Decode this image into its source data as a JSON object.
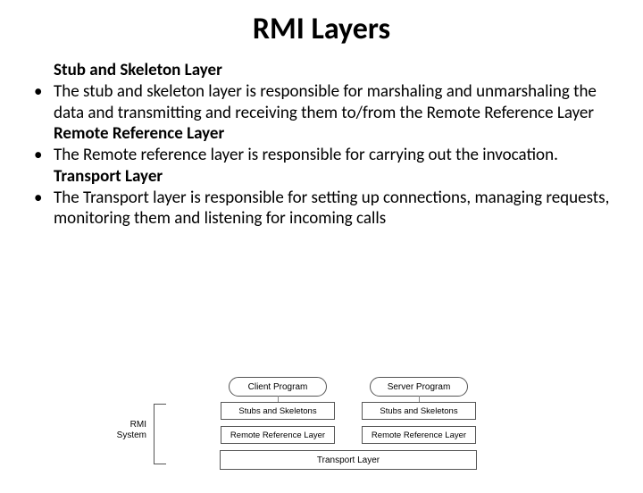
{
  "title": "RMI Layers",
  "sections": [
    {
      "heading": "Stub and Skeleton Layer",
      "bullet": "The stub and skeleton layer is responsible for marshaling and unmarshaling the data and transmitting and receiving them to/from the Remote Reference Layer"
    },
    {
      "heading": "Remote Reference Layer",
      "bullet": "The Remote reference layer is responsible for carrying out the invocation."
    },
    {
      "heading": "Transport Layer",
      "bullet": "The Transport layer is responsible for setting up connections, managing requests, monitoring them and listening for incoming calls"
    }
  ],
  "diagram": {
    "rmi_label_1": "RMI",
    "rmi_label_2": "System",
    "client_oval": "Client Program",
    "server_oval": "Server Program",
    "stub_box": "Stubs and Skeletons",
    "rrl_box": "Remote Reference Layer",
    "transport_box": "Transport Layer",
    "colors": {
      "border": "#555555",
      "text": "#000000",
      "background": "#ffffff"
    },
    "fontsize": 10
  }
}
